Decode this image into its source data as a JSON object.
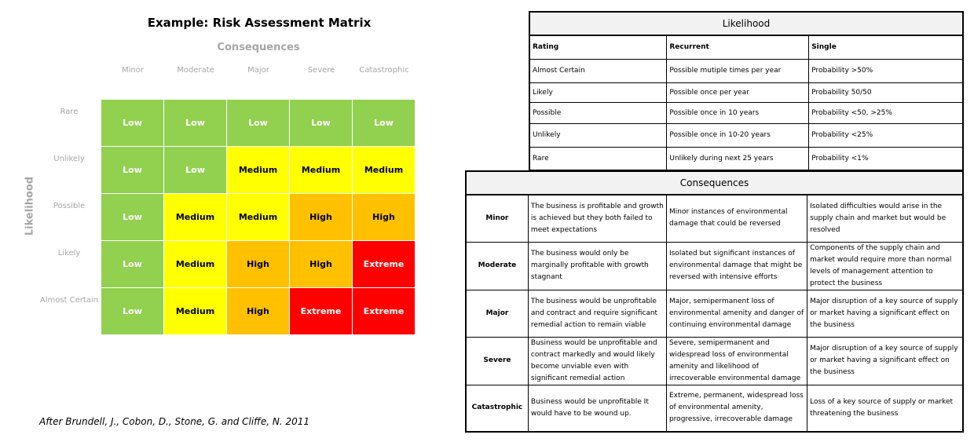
{
  "matrix": {
    "title": "Example: Risk Assessment Matrix",
    "consequences_label": "Consequences",
    "likelihood_label": "Likelihood",
    "columns": [
      "Minor",
      "Moderate",
      "Major",
      "Severe",
      "Catastrophic"
    ],
    "rows": [
      {
        "label": "Rare",
        "cells": [
          "Low",
          "Low",
          "Low",
          "Low",
          "Low"
        ]
      },
      {
        "label": "Unlikely",
        "cells": [
          "Low",
          "Low",
          "Medium",
          "Medium",
          "Medium"
        ]
      },
      {
        "label": "Possible",
        "cells": [
          "Low",
          "Medium",
          "Medium",
          "High",
          "High"
        ]
      },
      {
        "label": "Likely",
        "cells": [
          "Low",
          "Medium",
          "High",
          "High",
          "Extreme"
        ]
      },
      {
        "label": "Almost Certain",
        "cells": [
          "Low",
          "Medium",
          "High",
          "Extreme",
          "Extreme"
        ]
      }
    ],
    "colors": {
      "Low": "#92d050",
      "Medium": "#ffff00",
      "High": "#ffc000",
      "Extreme": "#ff0000"
    },
    "text_colors": {
      "Low": "#ffffff",
      "Medium": "#000000",
      "High": "#000000",
      "Extreme": "#ffffff"
    },
    "citation": "After Brundell, J., Cobon, D., Stone, G. and Cliffe, N. 2011"
  },
  "likelihood_table": {
    "title": "Likelihood",
    "headers": [
      "Rating",
      "Recurrent",
      "Single"
    ],
    "rows": [
      [
        "Almost Certain",
        "Possible mutiple times per year",
        "Probability >50%"
      ],
      [
        "Likely",
        "Possible once per year",
        "Probability 50/50"
      ],
      [
        "Possible",
        "Possible once in 10 years",
        "Probability <50, >25%"
      ],
      [
        "Unlikely",
        "Possible  once in 10-20 years",
        "Probability <25%"
      ],
      [
        "Rare",
        "Unlikely during next 25 years",
        "Probability <1%"
      ]
    ]
  },
  "consequences_table": {
    "title": "Consequences",
    "rows": [
      [
        "Minor",
        "The business is profitable and growth is achieved but they both failed to meet  expectations",
        "Minor instances of environmental damage that could be reversed",
        "Isolated difficulties would arise in the supply chain and market but would be resolved"
      ],
      [
        "Moderate",
        "The business would only be marginally profitable with growth stagnant",
        "Isolated but significant instances of environmental damage that might be reversed with intensive efforts",
        "Components of the supply chain and market would require more than normal levels of management attention to protect the business"
      ],
      [
        "Major",
        "The business would be unprofitable and contract and require significant remedial action to remain viable",
        "Major, semipermanent loss of environmental amenity and danger of continuing environmental damage",
        "Major disruption of a key source of supply or market having a significant effect on the business"
      ],
      [
        "Severe",
        "Business would be unprofitable and contract markedly and would likely become unviable even with significant remedial action",
        "Severe, semipermanent and widespread loss of environmental amenity and likelihood of irrecoverable environmental damage",
        "Major disruption of a key source of supply or market having a significant effect on the business"
      ],
      [
        "Catastrophic",
        "Business would be unprofitable It would have to be wound up.",
        "Extreme, permanent, widespread loss of environmental amenity, progressive, irrecoverable damage",
        "Loss of a key source of supply or market threatening the business"
      ]
    ]
  }
}
